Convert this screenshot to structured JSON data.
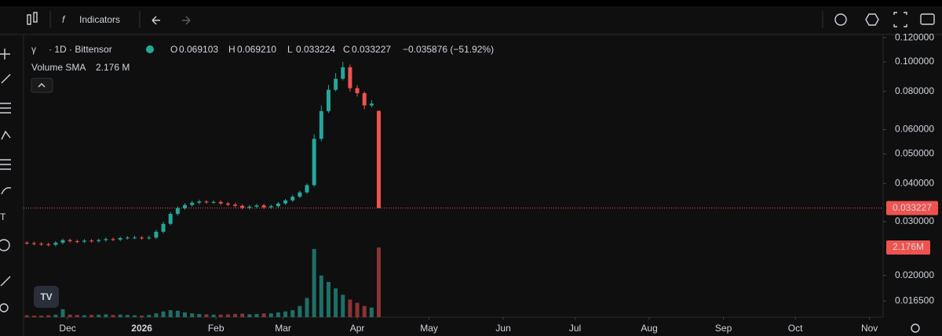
{
  "toolbar": {
    "indicators": "Indicators"
  },
  "chart_data": {
    "type": "candlestick",
    "symbol": "γ",
    "interval": "· 1D · Bittensor",
    "ohlc_prefixes": [
      "O",
      "H",
      "L",
      "C"
    ],
    "ohlc_labels": [
      "0.069103",
      "0.069210",
      "0.033224",
      "0.033227"
    ],
    "change_label": "−0.035876 (−51.92%)",
    "volume_title": "Volume SMA",
    "volume_sma_label": "2.176 M",
    "last_price_label": "0.033227",
    "last_volume_label": "2.176M",
    "log_scale": true,
    "up_color": "#26a69a",
    "down_color": "#ef5350",
    "volume_up_color": "#1e6f66",
    "volume_down_color": "#8a3434",
    "x": [
      -17,
      -14,
      -11,
      -8,
      -5,
      -2,
      1,
      4,
      7,
      10,
      13,
      16,
      19,
      22,
      25,
      28,
      31,
      34,
      37,
      40,
      43,
      46,
      49,
      52,
      55,
      58,
      61,
      64,
      67,
      70,
      73,
      76,
      79,
      82,
      85,
      88,
      91,
      94,
      97,
      100,
      103,
      106,
      109,
      112,
      115,
      118,
      121,
      124,
      127,
      130
    ],
    "open": [
      0.0256,
      0.0255,
      0.0254,
      0.0253,
      0.0252,
      0.0256,
      0.0261,
      0.0259,
      0.0258,
      0.026,
      0.0259,
      0.0261,
      0.0263,
      0.0262,
      0.0265,
      0.0266,
      0.0266,
      0.0265,
      0.0266,
      0.0278,
      0.0295,
      0.0318,
      0.0332,
      0.034,
      0.0346,
      0.0349,
      0.0347,
      0.0348,
      0.0344,
      0.0341,
      0.0338,
      0.0333,
      0.0336,
      0.0339,
      0.0334,
      0.0337,
      0.0344,
      0.0352,
      0.0362,
      0.0374,
      0.0395,
      0.056,
      0.069,
      0.081,
      0.088,
      0.096,
      0.082,
      0.079,
      0.072,
      0.069103
    ],
    "high": [
      0.0259,
      0.0258,
      0.0257,
      0.0256,
      0.0259,
      0.0264,
      0.0264,
      0.0262,
      0.0263,
      0.0263,
      0.0264,
      0.0266,
      0.0266,
      0.0268,
      0.0269,
      0.027,
      0.0269,
      0.027,
      0.0282,
      0.03,
      0.0323,
      0.0337,
      0.0345,
      0.0351,
      0.0354,
      0.0353,
      0.0352,
      0.0352,
      0.0348,
      0.0345,
      0.0342,
      0.034,
      0.0343,
      0.0343,
      0.0341,
      0.0348,
      0.0356,
      0.0367,
      0.0379,
      0.04,
      0.058,
      0.072,
      0.084,
      0.092,
      0.1,
      0.098,
      0.084,
      0.08,
      0.075,
      0.06921
    ],
    "low": [
      0.0252,
      0.0251,
      0.025,
      0.0249,
      0.0249,
      0.0253,
      0.0256,
      0.0255,
      0.0255,
      0.0256,
      0.0256,
      0.0258,
      0.0259,
      0.0259,
      0.0262,
      0.0263,
      0.0262,
      0.0262,
      0.0263,
      0.0275,
      0.0292,
      0.0314,
      0.0328,
      0.0336,
      0.0342,
      0.0343,
      0.0343,
      0.034,
      0.0337,
      0.0334,
      0.0329,
      0.0329,
      0.0332,
      0.033,
      0.033,
      0.0333,
      0.034,
      0.0348,
      0.0358,
      0.037,
      0.039,
      0.055,
      0.068,
      0.08,
      0.087,
      0.08,
      0.077,
      0.07,
      0.071,
      0.033224
    ],
    "close": [
      0.0255,
      0.0254,
      0.0253,
      0.0252,
      0.0256,
      0.0261,
      0.0259,
      0.0258,
      0.026,
      0.0259,
      0.0261,
      0.0263,
      0.0262,
      0.0265,
      0.0266,
      0.0266,
      0.0265,
      0.0266,
      0.0278,
      0.0295,
      0.0318,
      0.0332,
      0.034,
      0.0346,
      0.0349,
      0.0347,
      0.0348,
      0.0344,
      0.0341,
      0.0338,
      0.0333,
      0.0336,
      0.0339,
      0.0334,
      0.0337,
      0.0344,
      0.0352,
      0.0362,
      0.0374,
      0.0395,
      0.056,
      0.069,
      0.081,
      0.088,
      0.096,
      0.082,
      0.079,
      0.072,
      0.073,
      0.033227
    ],
    "volume": [
      0.06,
      0.05,
      0.05,
      0.06,
      0.08,
      0.25,
      0.08,
      0.07,
      0.06,
      0.07,
      0.08,
      0.09,
      0.07,
      0.08,
      0.07,
      0.06,
      0.05,
      0.07,
      0.12,
      0.18,
      0.22,
      0.2,
      0.15,
      0.12,
      0.1,
      0.09,
      0.08,
      0.08,
      0.09,
      0.1,
      0.11,
      0.09,
      0.1,
      0.12,
      0.12,
      0.15,
      0.18,
      0.22,
      0.35,
      0.6,
      2.13,
      1.3,
      1.1,
      0.9,
      0.7,
      0.55,
      0.45,
      0.35,
      0.3,
      2.176
    ],
    "volume_ylim": [
      0,
      8.8
    ],
    "xlim": [
      -18.4,
      340.7
    ],
    "xticks": [
      {
        "value": 0,
        "label": "Dec"
      },
      {
        "value": 31,
        "label": "2026"
      },
      {
        "value": 62,
        "label": "Feb"
      },
      {
        "value": 90,
        "label": "Mar"
      },
      {
        "value": 121,
        "label": "Apr"
      },
      {
        "value": 151,
        "label": "May"
      },
      {
        "value": 182,
        "label": "Jun"
      },
      {
        "value": 212,
        "label": "Jul"
      },
      {
        "value": 243,
        "label": "Aug"
      },
      {
        "value": 274,
        "label": "Sep"
      },
      {
        "value": 304,
        "label": "Oct"
      },
      {
        "value": 335,
        "label": "Nov"
      }
    ],
    "ylim": [
      0.0146,
      0.1222
    ],
    "yticks": [
      {
        "value": 0.12,
        "label": "0.120000"
      },
      {
        "value": 0.1,
        "label": "0.100000"
      },
      {
        "value": 0.08,
        "label": "0.080000"
      },
      {
        "value": 0.06,
        "label": "0.060000"
      },
      {
        "value": 0.05,
        "label": "0.050000"
      },
      {
        "value": 0.04,
        "label": "0.040000"
      },
      {
        "value": 0.03,
        "label": "0.030000"
      },
      {
        "value": 0.02,
        "label": "0.020000"
      },
      {
        "value": 0.0165,
        "label": "0.016500"
      }
    ]
  }
}
